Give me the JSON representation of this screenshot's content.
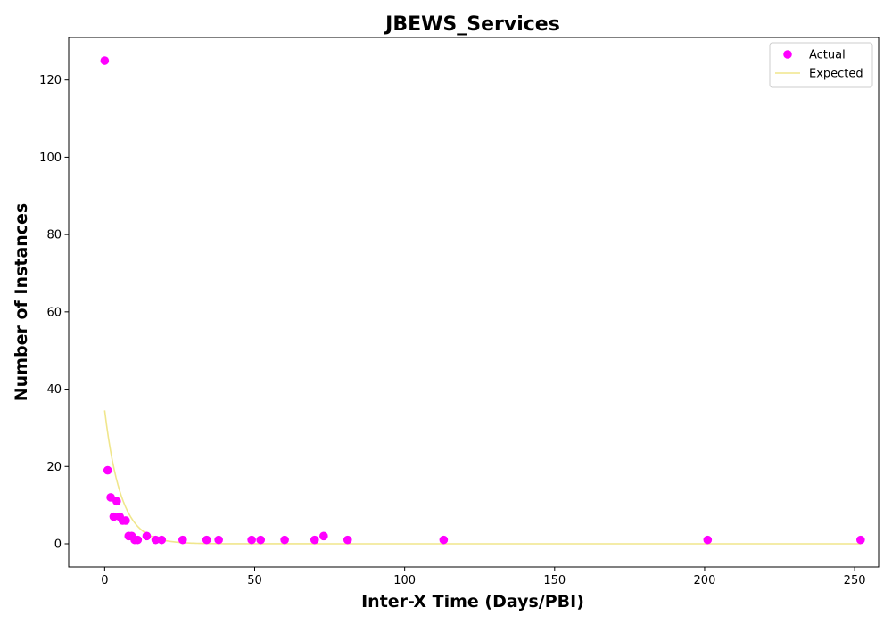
{
  "chart_data": {
    "type": "scatter",
    "title": "JBEWS_Services",
    "xlabel": "Inter-X Time (Days/PBI)",
    "ylabel": "Number of Instances",
    "xlim": [
      -12,
      258
    ],
    "ylim": [
      -6,
      131
    ],
    "xticks": [
      0,
      50,
      100,
      150,
      200,
      250
    ],
    "yticks": [
      0,
      20,
      40,
      60,
      80,
      100,
      120
    ],
    "grid": false,
    "legend_position": "top-right",
    "series": [
      {
        "name": "Actual",
        "kind": "scatter",
        "color": "#ff00ff",
        "points": [
          [
            0,
            125
          ],
          [
            1,
            19
          ],
          [
            2,
            12
          ],
          [
            3,
            7
          ],
          [
            4,
            11
          ],
          [
            5,
            7
          ],
          [
            6,
            6
          ],
          [
            7,
            6
          ],
          [
            8,
            2
          ],
          [
            9,
            2
          ],
          [
            10,
            1
          ],
          [
            11,
            1
          ],
          [
            14,
            2
          ],
          [
            17,
            1
          ],
          [
            19,
            1
          ],
          [
            26,
            1
          ],
          [
            34,
            1
          ],
          [
            38,
            1
          ],
          [
            49,
            1
          ],
          [
            52,
            1
          ],
          [
            60,
            1
          ],
          [
            70,
            1
          ],
          [
            73,
            2
          ],
          [
            81,
            1
          ],
          [
            113,
            1
          ],
          [
            201,
            1
          ],
          [
            252,
            1
          ]
        ]
      },
      {
        "name": "Expected",
        "kind": "line",
        "color": "#f0e68c",
        "model": "exponential",
        "amplitude": 34.5,
        "rate": 0.185,
        "x_range": [
          0,
          252
        ]
      }
    ]
  }
}
